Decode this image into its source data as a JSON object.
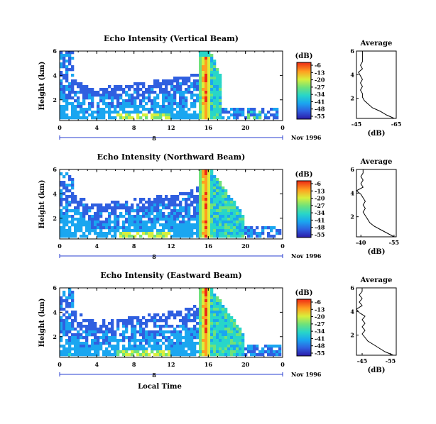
{
  "chart_data": [
    {
      "type": "heatmap",
      "title": "Echo Intensity (Vertical Beam)",
      "xlabel": "",
      "ylabel": "Height (km)",
      "xticks": [
        "0",
        "4",
        "8",
        "12",
        "16",
        "20",
        "0"
      ],
      "yticks": [
        "2",
        "4",
        "6"
      ],
      "xlim": [
        0,
        24
      ],
      "ylim": [
        0.3,
        6
      ],
      "date_day": "8",
      "date_label": "Nov 1996",
      "colorbar": {
        "unit": "(dB)",
        "ticks": [
          "-6",
          "-13",
          "-20",
          "-27",
          "-34",
          "-41",
          "-48",
          "-55"
        ],
        "range": [
          -55,
          -6
        ]
      },
      "layer_top_km": [
        4.5,
        4.0,
        3.6,
        3.3,
        3.0,
        2.9,
        3.0,
        3.1,
        3.2,
        3.3,
        3.4,
        3.5,
        3.6,
        3.7,
        3.8,
        4.0,
        4.2,
        4.5,
        4.8,
        5.1,
        5.5
      ],
      "layer_top_hours": [
        0,
        0.8,
        1.6,
        2.4,
        3.2,
        4,
        5,
        6,
        7,
        8,
        9,
        10,
        11,
        12,
        13,
        14,
        15,
        15.5,
        16,
        16.5,
        17
      ],
      "storm_hours": [
        15.2,
        16.4
      ],
      "profile": {
        "title": "Average",
        "xlabel": "(dB)",
        "xticks": [
          "-45",
          "-65"
        ],
        "xlim": [
          -45,
          -65
        ],
        "yticks": [
          "2",
          "4",
          "6"
        ],
        "ylim": [
          0.3,
          6
        ],
        "height_km": [
          0.3,
          0.6,
          0.9,
          1.2,
          1.5,
          1.8,
          2.1,
          2.4,
          2.7,
          3.0,
          3.3,
          3.6,
          3.9,
          4.2,
          4.5,
          4.8,
          5.1,
          5.4,
          5.7,
          6.0
        ],
        "db": [
          -64,
          -60,
          -57,
          -53,
          -51,
          -49,
          -48,
          -48,
          -47,
          -48,
          -47,
          -48,
          -47,
          -46,
          -48,
          -47,
          -48,
          -48,
          -48,
          -48
        ]
      }
    },
    {
      "type": "heatmap",
      "title": "Echo Intensity (Northward Beam)",
      "xlabel": "",
      "ylabel": "Height (km)",
      "xticks": [
        "0",
        "4",
        "8",
        "12",
        "16",
        "20",
        "0"
      ],
      "yticks": [
        "2",
        "4",
        "6"
      ],
      "xlim": [
        0,
        24
      ],
      "ylim": [
        0.3,
        6
      ],
      "date_day": "8",
      "date_label": "Nov 1996",
      "colorbar": {
        "unit": "(dB)",
        "ticks": [
          "-6",
          "-13",
          "-20",
          "-27",
          "-34",
          "-41",
          "-48",
          "-55"
        ],
        "range": [
          -55,
          -6
        ]
      },
      "layer_top_km": [
        5.5,
        4.6,
        4.0,
        3.6,
        3.3,
        3.1,
        3.2,
        3.3,
        3.4,
        3.5,
        3.6,
        3.7,
        3.8,
        3.9,
        4.0,
        4.2,
        4.6,
        5.0,
        5.4,
        5.8,
        6.0
      ],
      "layer_top_hours": [
        0,
        0.8,
        1.6,
        2.4,
        3.2,
        4,
        5,
        6,
        7,
        8,
        9,
        10,
        11,
        12,
        13,
        14,
        15,
        15.5,
        16,
        16.5,
        17
      ],
      "storm_hours": [
        15.2,
        16.4
      ],
      "profile": {
        "title": "Average",
        "xlabel": "(dB)",
        "xticks": [
          "-40",
          "-55"
        ],
        "xlim": [
          -38,
          -56
        ],
        "yticks": [
          "2",
          "4",
          "6"
        ],
        "ylim": [
          0.3,
          6
        ],
        "height_km": [
          0.3,
          0.6,
          0.9,
          1.2,
          1.5,
          1.8,
          2.1,
          2.4,
          2.7,
          3.0,
          3.3,
          3.6,
          3.9,
          4.2,
          4.5,
          4.8,
          5.1,
          5.4,
          5.7,
          6.0
        ],
        "db": [
          -55,
          -52,
          -49,
          -46,
          -44,
          -43,
          -42,
          -41,
          -42,
          -41,
          -42,
          -41,
          -40,
          -38,
          -41,
          -40,
          -41,
          -40,
          -41,
          -41
        ]
      }
    },
    {
      "type": "heatmap",
      "title": "Echo Intensity (Eastward Beam)",
      "xlabel": "Local Time",
      "ylabel": "Height (km)",
      "xticks": [
        "0",
        "4",
        "8",
        "12",
        "16",
        "20",
        "0"
      ],
      "yticks": [
        "2",
        "4",
        "6"
      ],
      "xlim": [
        0,
        24
      ],
      "ylim": [
        0.3,
        6
      ],
      "date_day": "8",
      "date_label": "Nov 1996",
      "colorbar": {
        "unit": "(dB)",
        "ticks": [
          "-6",
          "-13",
          "-20",
          "-27",
          "-34",
          "-41",
          "-48",
          "-55"
        ],
        "range": [
          -55,
          -6
        ]
      },
      "layer_top_km": [
        5.6,
        4.8,
        4.2,
        3.7,
        3.4,
        3.2,
        3.3,
        3.4,
        3.5,
        3.6,
        3.7,
        3.8,
        3.9,
        4.0,
        4.1,
        4.3,
        4.7,
        5.1,
        5.5,
        5.9,
        6.0
      ],
      "layer_top_hours": [
        0,
        0.8,
        1.6,
        2.4,
        3.2,
        4,
        5,
        6,
        7,
        8,
        9,
        10,
        11,
        12,
        13,
        14,
        15,
        15.5,
        16,
        16.5,
        17
      ],
      "storm_hours": [
        15.2,
        16.4
      ],
      "profile": {
        "title": "Average",
        "xlabel": "(dB)",
        "xticks": [
          "-45",
          "-55"
        ],
        "xlim": [
          -43,
          -57
        ],
        "yticks": [
          "2",
          "4",
          "6"
        ],
        "ylim": [
          0.3,
          6
        ],
        "height_km": [
          0.3,
          0.6,
          0.9,
          1.2,
          1.5,
          1.8,
          2.1,
          2.4,
          2.7,
          3.0,
          3.3,
          3.6,
          3.9,
          4.2,
          4.5,
          4.8,
          5.1,
          5.4,
          5.7,
          6.0
        ],
        "db": [
          -56,
          -53,
          -51,
          -49,
          -47,
          -46,
          -45,
          -46,
          -45,
          -46,
          -45,
          -46,
          -44,
          -43,
          -45,
          -44,
          -45,
          -44,
          -45,
          -45
        ]
      }
    }
  ]
}
